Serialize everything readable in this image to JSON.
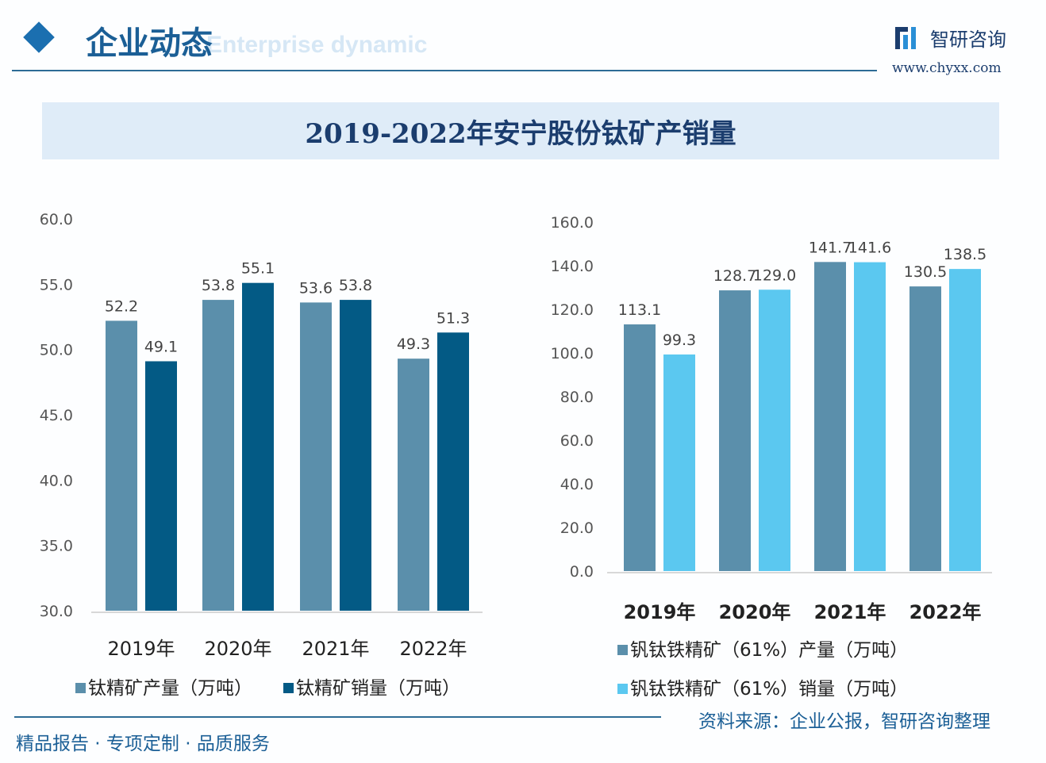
{
  "header": {
    "title": "企业动态",
    "subtitle": "Enterprise dynamic",
    "brand": "智研咨询",
    "brand_url": "www.chyxx.com"
  },
  "footer": {
    "slogan": "精品报告 · 专项定制 · 品质服务",
    "source": "资料来源：企业公报，智研咨询整理"
  },
  "chart_title": "2019-2022年安宁股份钛矿产销量",
  "chart_data": [
    {
      "type": "bar",
      "title": "2019-2022年安宁股份钛矿产销量",
      "categories": [
        "2019年",
        "2020年",
        "2021年",
        "2022年"
      ],
      "ylim": [
        30,
        60
      ],
      "yticks": [
        "30.0",
        "35.0",
        "40.0",
        "45.0",
        "50.0",
        "55.0",
        "60.0"
      ],
      "grid": false,
      "legend": "bottom",
      "series": [
        {
          "name": "钛精矿产量（万吨）",
          "values": [
            52.2,
            53.8,
            53.6,
            49.3
          ],
          "color": "#5b8fab"
        },
        {
          "name": "钛精矿销量（万吨）",
          "values": [
            49.1,
            55.1,
            53.8,
            51.3
          ],
          "color": "#035a85"
        }
      ]
    },
    {
      "type": "bar",
      "categories": [
        "2019年",
        "2020年",
        "2021年",
        "2022年"
      ],
      "ylim": [
        0,
        160
      ],
      "yticks": [
        "0.0",
        "20.0",
        "40.0",
        "60.0",
        "80.0",
        "100.0",
        "120.0",
        "140.0",
        "160.0"
      ],
      "grid": false,
      "legend": "bottom",
      "series": [
        {
          "name": "钒钛铁精矿（61%）产量（万吨）",
          "values": [
            113.1,
            128.7,
            141.7,
            130.5
          ],
          "color": "#5b8fab"
        },
        {
          "name": "钒钛铁精矿（61%）销量（万吨）",
          "values": [
            99.3,
            129.0,
            141.6,
            138.5
          ],
          "color": "#5bc8f0"
        }
      ]
    }
  ]
}
